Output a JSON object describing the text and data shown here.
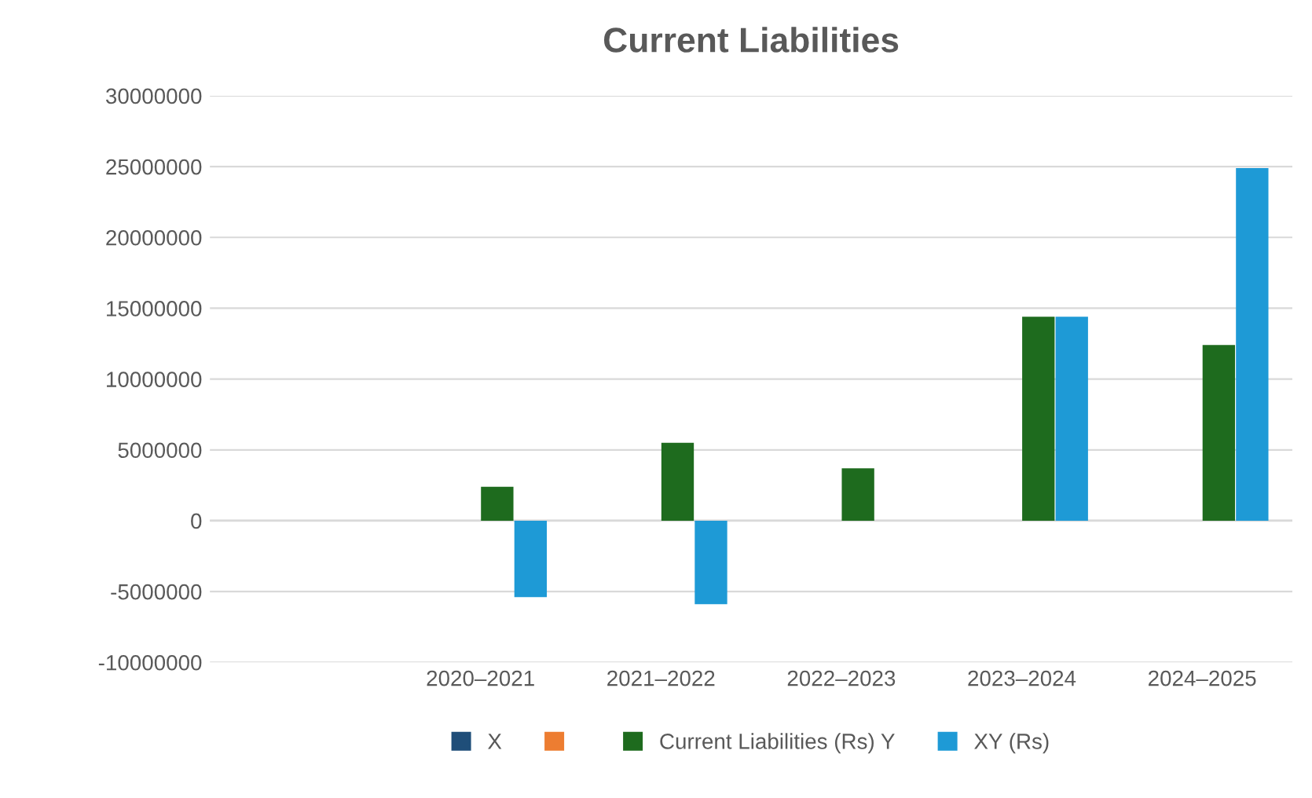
{
  "chart_data": {
    "type": "bar",
    "title": "Current Liabilities",
    "categories": [
      null,
      "2020–2021",
      "2021–2022",
      "2022–2023",
      "2023–2024",
      "2024–2025"
    ],
    "series": [
      {
        "name": "X",
        "color": "#1f4e79",
        "values": [
          null,
          null,
          null,
          null,
          null,
          null
        ]
      },
      {
        "color": "#ed7d31",
        "values": [
          null,
          null,
          null,
          null,
          null,
          null
        ]
      },
      {
        "name": "Current Liabilities (Rs) Y",
        "color": "#1e6b1e",
        "values": [
          null,
          2400000,
          5500000,
          3700000,
          14400000,
          12400000
        ]
      },
      {
        "name": "XY (Rs)",
        "color": "#1e9ad6",
        "values": [
          null,
          -5400000,
          -5900000,
          null,
          14400000,
          24900000
        ]
      }
    ],
    "ylim": [
      -10000000,
      30000000
    ],
    "yticks": [
      -10000000,
      -5000000,
      0,
      5000000,
      10000000,
      15000000,
      20000000,
      25000000,
      30000000
    ],
    "grid": "y",
    "legend": "bottom"
  }
}
